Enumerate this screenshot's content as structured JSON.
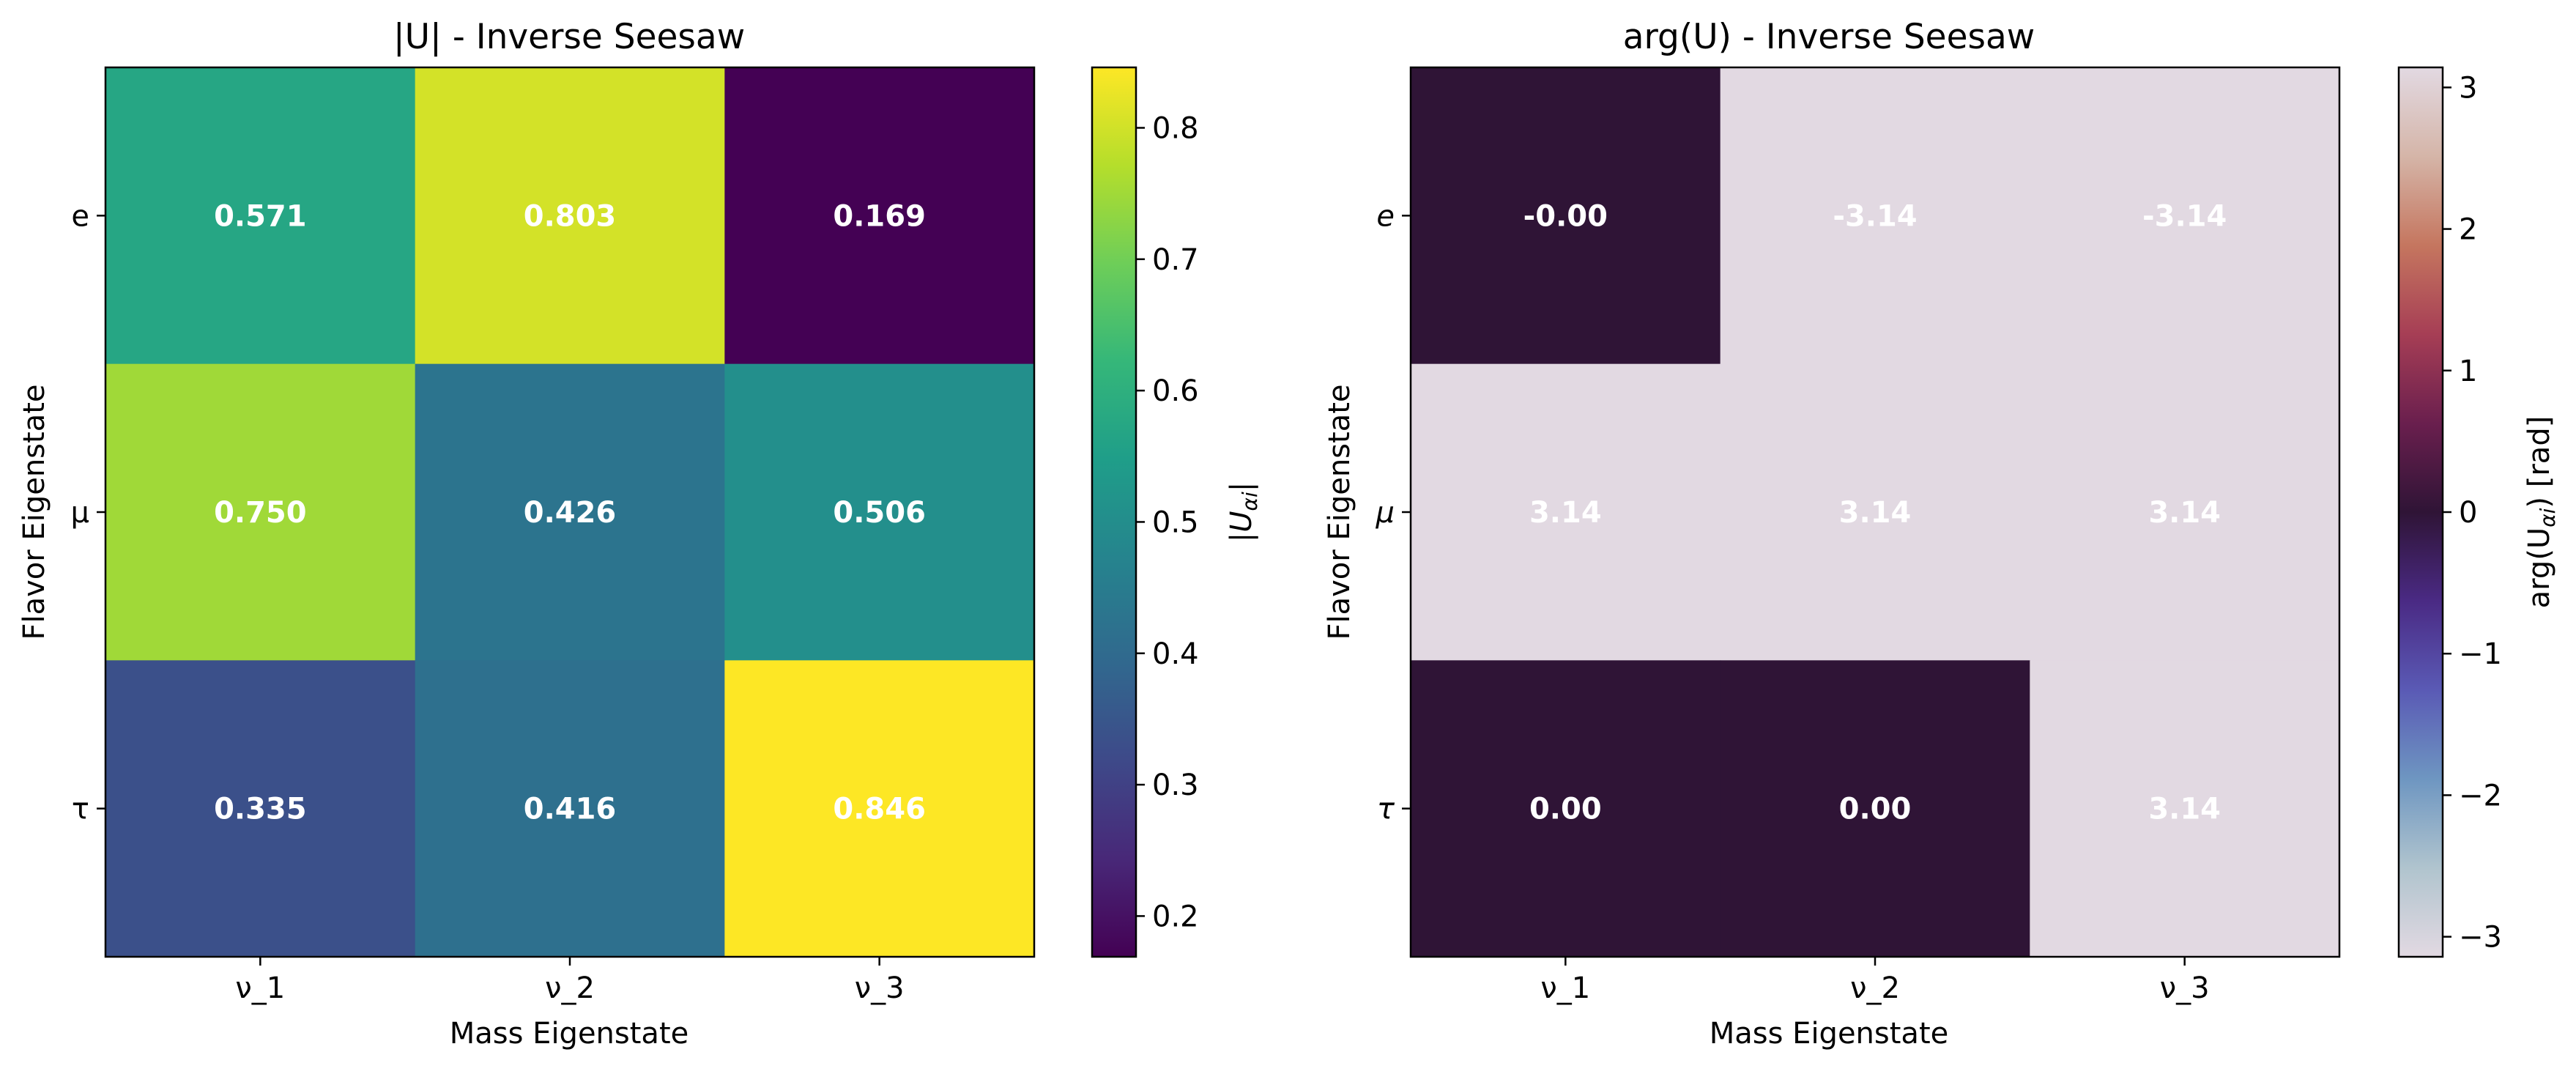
{
  "chart_data": [
    {
      "type": "heatmap",
      "title": "|U| - Inverse Seesaw",
      "xlabel": "Mass Eigenstate",
      "ylabel": "Flavor Eigenstate",
      "x_categories": [
        "ν_1",
        "ν_2",
        "ν_3"
      ],
      "y_categories": [
        "e",
        "μ",
        "τ"
      ],
      "values": [
        [
          0.571,
          0.803,
          0.169
        ],
        [
          0.75,
          0.426,
          0.506
        ],
        [
          0.335,
          0.416,
          0.846
        ]
      ],
      "cell_labels": [
        [
          "0.571",
          "0.803",
          "0.169"
        ],
        [
          "0.750",
          "0.426",
          "0.506"
        ],
        [
          "0.335",
          "0.416",
          "0.846"
        ]
      ],
      "colormap": "viridis",
      "vmin": 0.169,
      "vmax": 0.846,
      "colorbar": {
        "label": "|U_αi|",
        "label_base": "|U",
        "label_sub": "αi",
        "label_tail": "|",
        "ticks": [
          0.2,
          0.3,
          0.4,
          0.5,
          0.6,
          0.7,
          0.8
        ],
        "tick_labels": [
          "0.2",
          "0.3",
          "0.4",
          "0.5",
          "0.6",
          "0.7",
          "0.8"
        ]
      }
    },
    {
      "type": "heatmap",
      "title": "arg(U) - Inverse Seesaw",
      "xlabel": "Mass Eigenstate",
      "ylabel": "Flavor Eigenstate",
      "x_categories": [
        "ν_1",
        "ν_2",
        "ν_3"
      ],
      "y_categories": [
        "e",
        "μ",
        "τ"
      ],
      "values": [
        [
          -0.0,
          -3.14,
          -3.14
        ],
        [
          3.14,
          3.14,
          3.14
        ],
        [
          0.0,
          0.0,
          3.14
        ]
      ],
      "cell_labels": [
        [
          "-0.00",
          "-3.14",
          "-3.14"
        ],
        [
          "3.14",
          "3.14",
          "3.14"
        ],
        [
          "0.00",
          "0.00",
          "3.14"
        ]
      ],
      "colormap": "twilight",
      "vmin": -3.14159,
      "vmax": 3.14159,
      "colorbar": {
        "label": "arg(U_αi) [rad]",
        "label_base": "arg(U",
        "label_sub": "αi",
        "label_tail": ") [rad]",
        "ticks": [
          -3,
          -2,
          -1,
          0,
          1,
          2,
          3
        ],
        "tick_labels": [
          "−3",
          "−2",
          "−1",
          "0",
          "1",
          "2",
          "3"
        ]
      }
    }
  ]
}
